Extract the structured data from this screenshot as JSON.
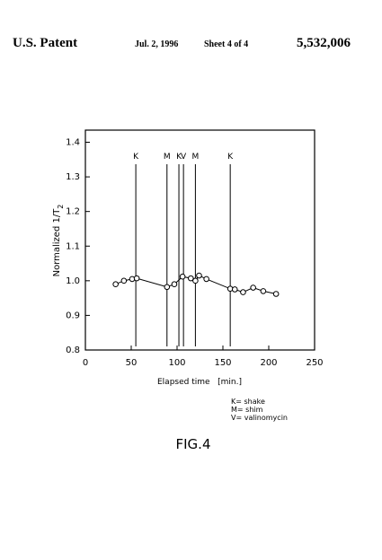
{
  "header": {
    "left": "U.S. Patent",
    "date": "Jul. 2, 1996",
    "sheet": "Sheet 4 of 4",
    "number": "5,532,006"
  },
  "chart_data": {
    "type": "line",
    "x_label": "Elapsed time   [min.]",
    "y_label": "Normalized 1/T",
    "y_label_sub": "2",
    "x": [
      33,
      42,
      51,
      56,
      89,
      97,
      106,
      115,
      120,
      124,
      132,
      158,
      163,
      172,
      183,
      194,
      208
    ],
    "series": [
      {
        "color": "#000000",
        "values": [
          0.99,
          1.0,
          1.005,
          1.007,
          0.982,
          0.99,
          1.012,
          1.007,
          1.0,
          1.015,
          1.005,
          0.977,
          0.975,
          0.967,
          0.98,
          0.97,
          0.962
        ]
      }
    ],
    "events": [
      {
        "x": 55,
        "label": "K"
      },
      {
        "x": 89,
        "label": "M"
      },
      {
        "x": 102,
        "label": "K"
      },
      {
        "x": 107,
        "label": "V"
      },
      {
        "x": 120,
        "label": "M"
      },
      {
        "x": 158,
        "label": "K"
      }
    ],
    "xlim": [
      0,
      250
    ],
    "xticks": [
      0,
      50,
      100,
      150,
      200,
      250
    ],
    "ylim": [
      0.8,
      1.435
    ],
    "yticks": [
      0.8,
      0.9,
      {
        "value": 1,
        "label": "1.0"
      },
      1.1,
      1.2,
      1.3,
      1.4
    ],
    "notes": [
      "K= shake",
      "M= shim",
      "V= valinomycin"
    ]
  },
  "figure_label": "FIG.4"
}
